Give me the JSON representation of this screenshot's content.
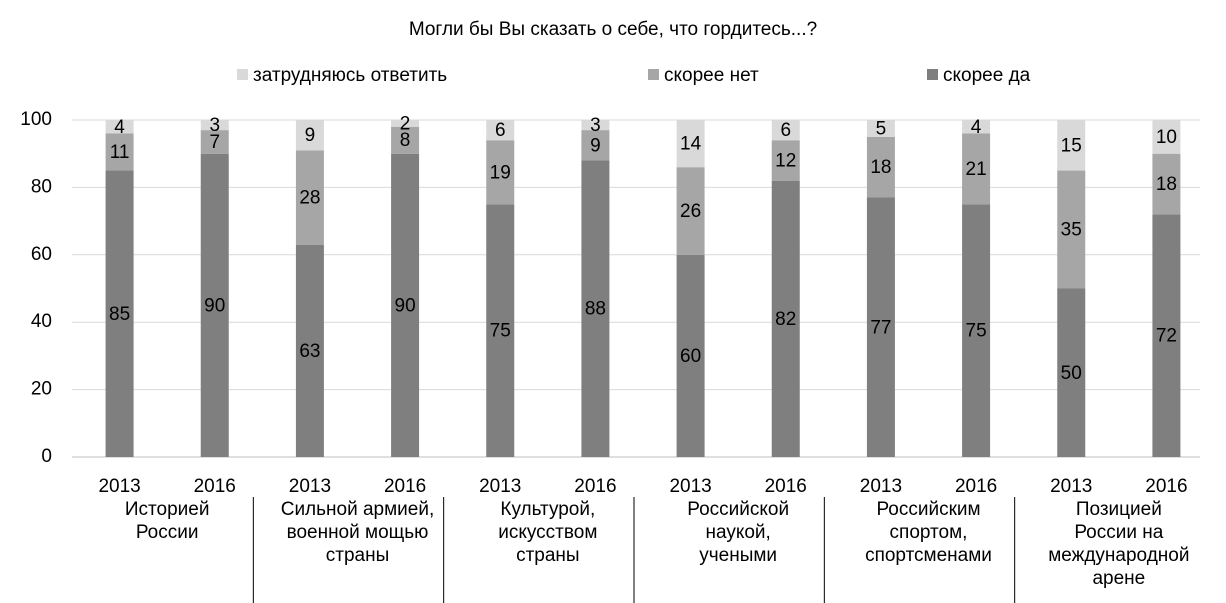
{
  "chart_data": {
    "type": "stacked_bar",
    "title": "Могли бы Вы сказать о себе, что гордитесь...?",
    "categories": [
      "2013",
      "2016",
      "2013",
      "2016",
      "2013",
      "2016",
      "2013",
      "2016",
      "2013",
      "2016",
      "2013",
      "2016"
    ],
    "groups": [
      "Историей\nРоссии",
      "Сильной армией,\nвоенной мощью\nстраны",
      "Культурой,\nискусством\nстраны",
      "Российской\nнаукой,\nучеными",
      "Российским\nспортом,\nспортсменами",
      "Позицией\nРоссии на\nмеждународной\nарене"
    ],
    "series": [
      {
        "name": "скорее да",
        "color": "#7f7f7f",
        "values": [
          85,
          90,
          63,
          90,
          75,
          88,
          60,
          82,
          77,
          75,
          50,
          72
        ]
      },
      {
        "name": "скорее нет",
        "color": "#a6a6a6",
        "values": [
          11,
          7,
          28,
          8,
          19,
          9,
          26,
          12,
          18,
          21,
          35,
          18
        ]
      },
      {
        "name": "затрудняюсь ответить",
        "color": "#d9d9d9",
        "values": [
          4,
          3,
          9,
          2,
          6,
          3,
          14,
          6,
          5,
          4,
          15,
          10
        ]
      }
    ],
    "ylim": [
      0,
      100
    ],
    "yticks": [
      0,
      20,
      40,
      60,
      80,
      100
    ],
    "grid": true,
    "legend": "top"
  }
}
